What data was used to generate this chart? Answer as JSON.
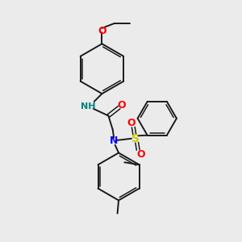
{
  "bg_color": "#ebebeb",
  "bond_color": "#1a1a1a",
  "N_color": "#0000ff",
  "O_color": "#ff0000",
  "S_color": "#cccc00",
  "NH_color": "#008080",
  "figsize": [
    3.0,
    3.0
  ],
  "dpi": 100,
  "xlim": [
    0,
    10
  ],
  "ylim": [
    0,
    10
  ]
}
